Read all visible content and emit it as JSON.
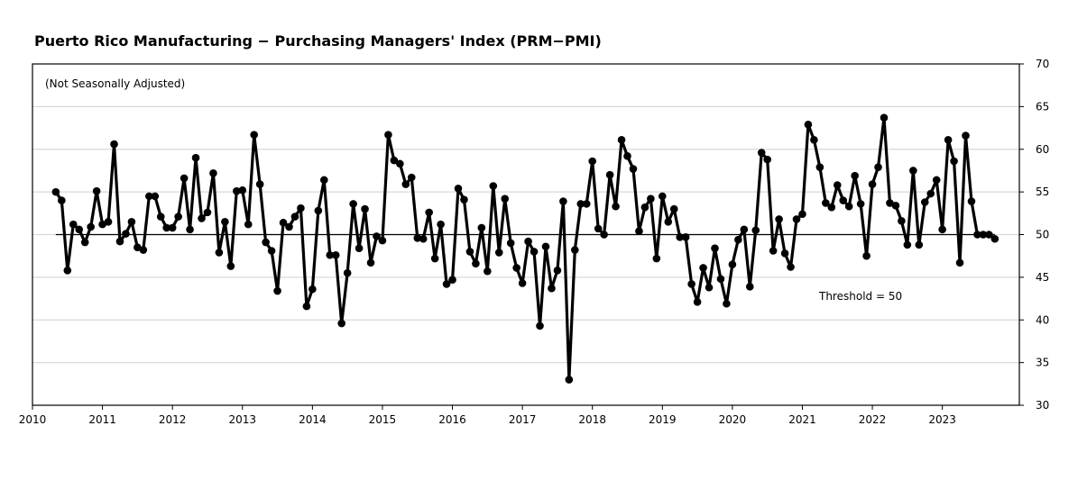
{
  "chart_data": {
    "type": "line",
    "title": "Puerto Rico Manufacturing − Purchasing Managers' Index (PRM−PMI)",
    "subtitle": "(Not Seasonally Adjusted)",
    "annotation": "Threshold = 50",
    "threshold": 50,
    "xlabel": "",
    "ylabel": "",
    "xlim": [
      2010,
      2024
    ],
    "ylim": [
      30,
      70
    ],
    "x_ticks": [
      "2010",
      "2011",
      "2012",
      "2013",
      "2014",
      "2015",
      "2016",
      "2017",
      "2018",
      "2019",
      "2020",
      "2021",
      "2022",
      "2023"
    ],
    "y_ticks": [
      30,
      35,
      40,
      45,
      50,
      55,
      60,
      65,
      70
    ],
    "y_axis_side": "right",
    "grid": "horizontal",
    "start": {
      "year": 2010,
      "month": 5
    },
    "frequency": "monthly",
    "series": [
      {
        "name": "PRM-PMI",
        "color": "#000000",
        "values": [
          55.0,
          54.0,
          45.8,
          51.2,
          50.6,
          49.1,
          50.9,
          55.1,
          51.2,
          51.5,
          60.6,
          49.2,
          50.1,
          51.5,
          48.5,
          48.2,
          54.5,
          54.5,
          52.1,
          50.8,
          50.8,
          52.1,
          56.6,
          50.6,
          59.0,
          51.9,
          52.6,
          57.2,
          47.9,
          51.5,
          46.3,
          55.1,
          55.2,
          51.2,
          61.7,
          55.9,
          49.1,
          48.1,
          43.4,
          51.4,
          50.9,
          52.1,
          53.1,
          41.6,
          43.6,
          52.8,
          56.4,
          47.6,
          47.6,
          39.6,
          45.5,
          53.6,
          48.4,
          53.0,
          46.7,
          49.8,
          49.3,
          61.7,
          58.7,
          58.3,
          55.9,
          56.7,
          49.6,
          49.5,
          52.6,
          47.2,
          51.2,
          44.2,
          44.7,
          55.4,
          54.1,
          48.0,
          46.6,
          50.8,
          45.7,
          55.7,
          47.9,
          54.2,
          49.0,
          46.1,
          44.3,
          49.2,
          48.0,
          39.3,
          48.6,
          43.7,
          45.8,
          53.9,
          33.0,
          48.2,
          53.6,
          53.6,
          58.6,
          50.7,
          50.0,
          57.0,
          53.3,
          61.1,
          59.2,
          57.7,
          50.4,
          53.2,
          54.2,
          47.2,
          54.5,
          51.5,
          53.0,
          49.7,
          49.7,
          44.2,
          42.1,
          46.1,
          43.8,
          48.4,
          44.8,
          41.9,
          46.5,
          49.4,
          50.6,
          43.9,
          50.5,
          59.6,
          58.8,
          48.1,
          51.8,
          47.8,
          46.2,
          51.8,
          52.4,
          62.9,
          61.1,
          57.9,
          53.7,
          53.2,
          55.8,
          54.0,
          53.3,
          56.9,
          53.6,
          47.5,
          55.9,
          57.9,
          63.7,
          53.7,
          53.4,
          51.6,
          48.8,
          57.5,
          48.8,
          53.8,
          54.8,
          56.4,
          50.6,
          61.1,
          58.6,
          46.7,
          61.6,
          53.9,
          50.0,
          50.0,
          50.0,
          49.5
        ]
      }
    ]
  }
}
